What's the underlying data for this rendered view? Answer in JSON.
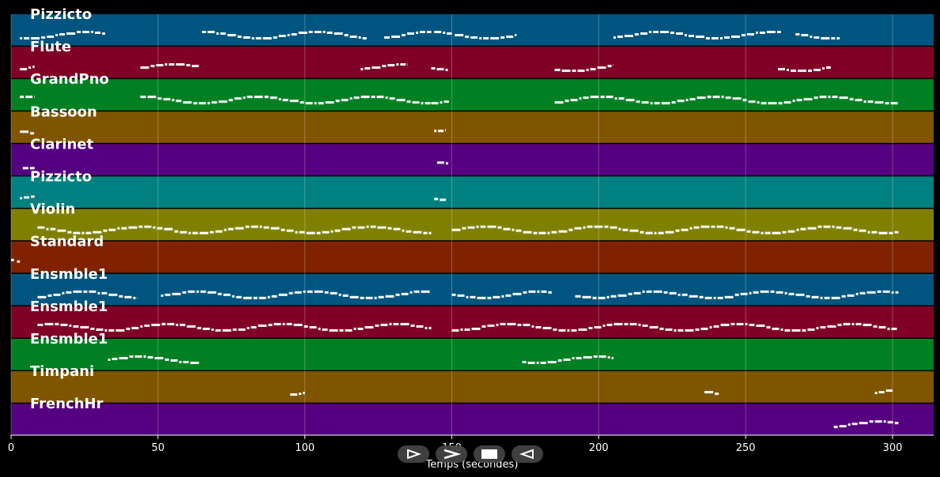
{
  "chart_data": {
    "type": "piano-roll",
    "xlabel": "Temps (secondes)",
    "xlim": [
      0,
      314
    ],
    "x_ticks": [
      0,
      50,
      100,
      150,
      200,
      250,
      300
    ],
    "grid": true,
    "tracks": [
      {
        "name": "Pizzicto",
        "color": "#005580",
        "segments": [
          [
            3,
            32
          ],
          [
            65,
            121
          ],
          [
            127,
            143
          ],
          [
            144,
            150
          ],
          [
            151,
            172
          ],
          [
            205,
            262
          ],
          [
            267,
            282
          ]
        ]
      },
      {
        "name": "Flute",
        "color": "#800025",
        "segments": [
          [
            3,
            8
          ],
          [
            44,
            64
          ],
          [
            119,
            135
          ],
          [
            143,
            149
          ],
          [
            185,
            205
          ],
          [
            261,
            279
          ]
        ]
      },
      {
        "name": "GrandPno",
        "color": "#008022",
        "segments": [
          [
            3,
            8
          ],
          [
            44,
            143
          ],
          [
            143,
            149
          ],
          [
            185,
            302
          ]
        ]
      },
      {
        "name": "Bassoon",
        "color": "#805500",
        "segments": [
          [
            3,
            8
          ],
          [
            144,
            148
          ]
        ]
      },
      {
        "name": "Clarinet",
        "color": "#550080",
        "segments": [
          [
            4,
            8
          ],
          [
            145,
            149
          ]
        ]
      },
      {
        "name": "Pizzicto",
        "color": "#008080",
        "segments": [
          [
            3,
            8
          ],
          [
            144,
            148
          ]
        ]
      },
      {
        "name": "Violin",
        "color": "#808000",
        "segments": [
          [
            9,
            143
          ],
          [
            150,
            302
          ]
        ]
      },
      {
        "name": "Standard",
        "color": "#802200",
        "segments": [
          [
            0,
            1
          ],
          [
            2,
            3
          ]
        ]
      },
      {
        "name": "Ensmble1",
        "color": "#005580",
        "segments": [
          [
            9,
            43
          ],
          [
            51,
            143
          ],
          [
            150,
            184
          ],
          [
            192,
            302
          ]
        ]
      },
      {
        "name": "Ensmble1",
        "color": "#800025",
        "segments": [
          [
            9,
            143
          ],
          [
            150,
            302
          ]
        ]
      },
      {
        "name": "Ensmble1",
        "color": "#008022",
        "segments": [
          [
            33,
            64
          ],
          [
            174,
            205
          ]
        ]
      },
      {
        "name": "Timpani",
        "color": "#805500",
        "segments": [
          [
            95,
            100
          ],
          [
            236,
            241
          ],
          [
            294,
            300
          ]
        ]
      },
      {
        "name": "FrenchHr",
        "color": "#550080",
        "segments": [
          [
            280,
            302
          ]
        ]
      }
    ]
  },
  "controls": {
    "play_icon": "play-outline-icon",
    "forward_icon": "forward-icon",
    "stop_icon": "stop-icon",
    "back_icon": "back-icon"
  }
}
